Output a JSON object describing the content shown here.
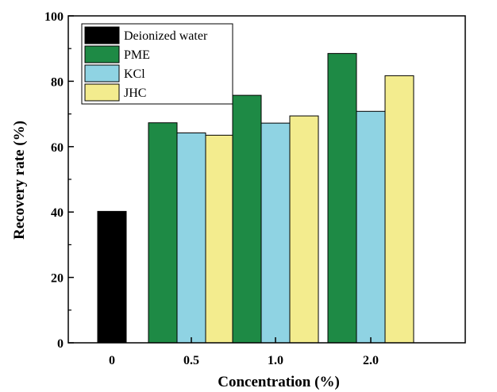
{
  "chart_data": {
    "type": "bar",
    "title": "",
    "xlabel": "Concentration (%)",
    "ylabel": "Recovery rate (%)",
    "ylim": [
      0,
      100
    ],
    "yticks": [
      "0",
      "20",
      "40",
      "60",
      "80",
      "100"
    ],
    "categories": [
      "0",
      "0.5",
      "1.0",
      "2.0"
    ],
    "legend_position": "top-left",
    "grid": false,
    "series": [
      {
        "name": "Deionized water",
        "color": "#000000",
        "values": [
          40.2,
          null,
          null,
          null
        ]
      },
      {
        "name": "PME",
        "color": "#1e8a45",
        "values": [
          null,
          67.3,
          75.7,
          88.5
        ]
      },
      {
        "name": "KCl",
        "color": "#8fd3e3",
        "values": [
          null,
          64.2,
          67.2,
          70.8
        ]
      },
      {
        "name": "JHC",
        "color": "#f3ec8e",
        "values": [
          null,
          63.5,
          69.4,
          81.7
        ]
      }
    ]
  }
}
